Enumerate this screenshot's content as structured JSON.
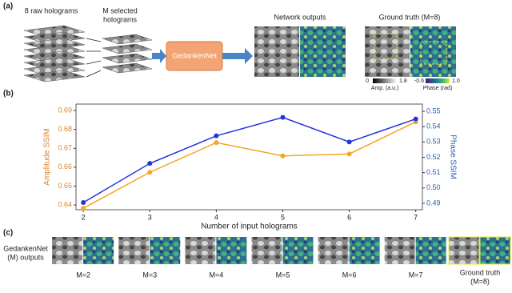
{
  "panel_a": {
    "label": "(a)",
    "raw_label": "8 raw holograms",
    "selected_label": [
      "M selected",
      "holograms"
    ],
    "network": "GedankenNet",
    "outputs_label": "Network outputs",
    "truth_label": "Ground truth (M=8)",
    "amp_colorbar": {
      "min": "0",
      "max": "1.8",
      "label": "Amp. (a.u.)"
    },
    "phase_colorbar": {
      "min": "-0.6",
      "max": "1.0",
      "label": "Phase (rad)"
    }
  },
  "panel_b": {
    "label": "(b)"
  },
  "chart_data": {
    "type": "line",
    "xlabel": "Number of input holograms",
    "ylabel": "Amplitude SSIM",
    "y2label": "Phase SSIM",
    "x": [
      2,
      3,
      4,
      5,
      6,
      7
    ],
    "xlim": [
      1.89,
      7.1
    ],
    "xticks": [
      2,
      3,
      4,
      5,
      6,
      7
    ],
    "ylim": [
      0.6375,
      0.6934
    ],
    "yticks": [
      0.64,
      0.65,
      0.66,
      0.67,
      0.68,
      0.69
    ],
    "y2lim": [
      0.4858,
      0.5547
    ],
    "y2ticks": [
      0.49,
      {
        "value": 0.5,
        "label": "0.50"
      },
      0.51,
      0.52,
      0.53,
      0.54,
      0.55
    ],
    "ylabel_color": "#d9822b",
    "y2label_color": "#2b5fb0",
    "series": [
      {
        "color": "#f5a623",
        "values": [
          0.6383,
          0.6573,
          0.673,
          0.666,
          0.667,
          0.684
        ]
      },
      {
        "color": "#2233dd",
        "axis": "y2",
        "values": [
          0.4905,
          0.516,
          0.534,
          0.546,
          0.53,
          0.545
        ]
      }
    ]
  },
  "panel_c": {
    "label": "(c)",
    "row_label": [
      "GedankenNet",
      "(M) outputs"
    ],
    "tiles": [
      "M=2",
      "M=3",
      "M=4",
      "M=5",
      "M=6",
      "M=7"
    ],
    "truth": [
      "Ground truth",
      "(M=8)"
    ]
  }
}
